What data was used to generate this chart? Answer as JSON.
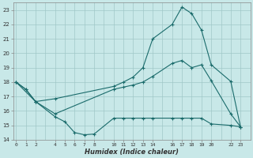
{
  "xlabel": "Humidex (Indice chaleur)",
  "bg_color": "#c8e8e8",
  "grid_color": "#a0c8c8",
  "line_color": "#1a6b6b",
  "ylim": [
    14,
    23.5
  ],
  "xlim": [
    -0.3,
    24
  ],
  "yticks": [
    14,
    15,
    16,
    17,
    18,
    19,
    20,
    21,
    22,
    23
  ],
  "xtick_positions": [
    0,
    1,
    2,
    4,
    5,
    6,
    7,
    8,
    10,
    11,
    12,
    13,
    14,
    16,
    17,
    18,
    19,
    20,
    22,
    23
  ],
  "xtick_labels": [
    "0",
    "1",
    "2",
    "4",
    "5",
    "6",
    "7",
    "8",
    "10",
    "11",
    "12",
    "13",
    "14",
    "16",
    "17",
    "18",
    "19",
    "20",
    "22",
    "23"
  ],
  "line1_x": [
    0,
    1,
    2,
    4,
    10,
    11,
    12,
    13,
    14,
    16,
    17,
    18,
    19,
    20,
    22,
    23
  ],
  "line1_y": [
    18.0,
    17.5,
    16.65,
    15.8,
    17.5,
    17.65,
    17.8,
    18.0,
    18.4,
    19.3,
    19.5,
    19.0,
    19.2,
    18.1,
    15.8,
    14.9
  ],
  "line2_x": [
    0,
    1,
    2,
    4,
    5,
    6,
    7,
    8,
    10,
    11,
    12,
    13,
    14,
    16,
    17,
    18,
    19,
    20,
    22,
    23
  ],
  "line2_y": [
    18.0,
    17.5,
    16.65,
    15.6,
    15.25,
    14.5,
    14.35,
    14.4,
    15.5,
    15.5,
    15.5,
    15.5,
    15.5,
    15.5,
    15.5,
    15.5,
    15.5,
    15.1,
    15.0,
    14.9
  ],
  "line3_x": [
    0,
    2,
    4,
    10,
    11,
    12,
    13,
    14,
    16,
    17,
    18,
    19,
    20,
    22,
    23
  ],
  "line3_y": [
    18.0,
    16.65,
    16.85,
    17.7,
    18.0,
    18.35,
    19.0,
    21.0,
    22.0,
    23.2,
    22.75,
    21.6,
    19.2,
    18.05,
    14.9
  ]
}
